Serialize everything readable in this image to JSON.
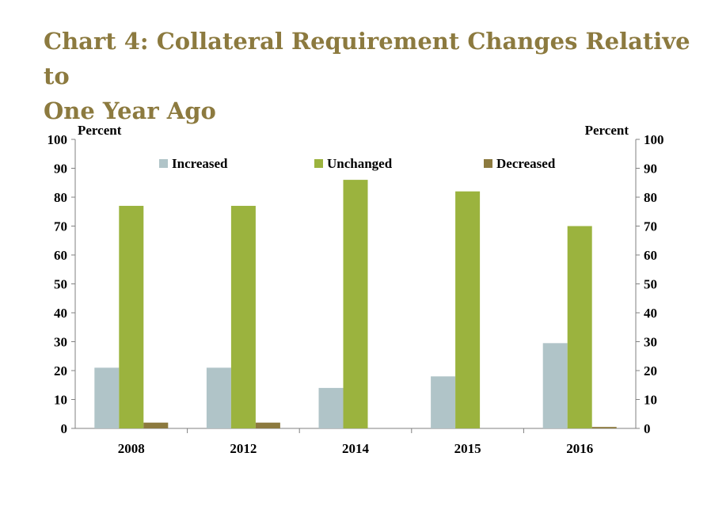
{
  "title_line1": "Chart 4: Collateral Requirement Changes Relative to",
  "title_line2": "One Year Ago",
  "chart_data": {
    "type": "bar",
    "title": "Chart 4: Collateral Requirement Changes Relative to One Year Ago",
    "ylabel_left": "Percent",
    "ylabel_right": "Percent",
    "ylim": [
      0,
      100
    ],
    "yticks": [
      0,
      10,
      20,
      30,
      40,
      50,
      60,
      70,
      80,
      90,
      100
    ],
    "categories": [
      "2008",
      "2012",
      "2014",
      "2015",
      "2016"
    ],
    "series": [
      {
        "name": "Increased",
        "color": "#b0c4c8",
        "values": [
          21,
          21,
          14,
          18,
          29.5
        ]
      },
      {
        "name": "Unchanged",
        "color": "#9bb33e",
        "values": [
          77,
          77,
          86,
          82,
          70
        ]
      },
      {
        "name": "Decreased",
        "color": "#8c7a3f",
        "values": [
          2,
          2,
          0,
          0,
          0.5
        ]
      }
    ],
    "legend_position": "top",
    "grid": false
  }
}
